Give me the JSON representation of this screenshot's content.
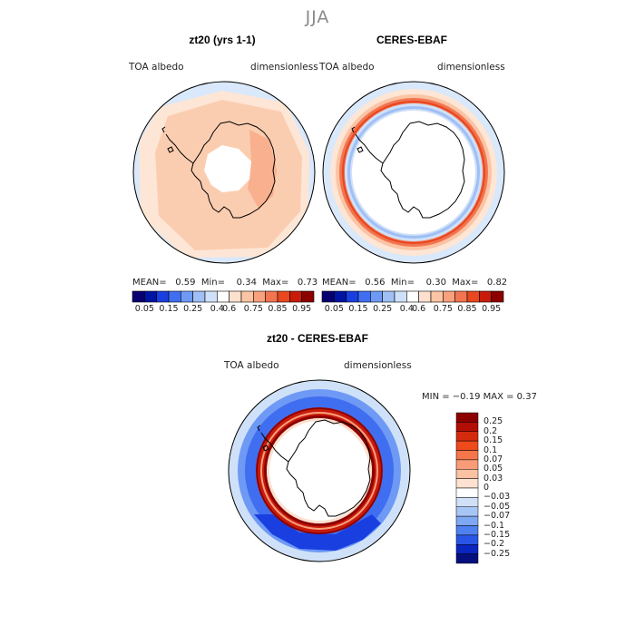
{
  "season": "JJA",
  "colors": {
    "scale": [
      "#08006e",
      "#0014a3",
      "#1a3fe0",
      "#3f6ef0",
      "#6e99f5",
      "#9fbff5",
      "#cfe1f8",
      "#ffffff",
      "#fde0cd",
      "#fbc4a4",
      "#f9a07c",
      "#f27450",
      "#e8471f",
      "#c81b0a",
      "#8d0000"
    ],
    "land_outline": "#000000",
    "frame": "#000000"
  },
  "panels": [
    {
      "title": "zt20 (yrs 1-1)",
      "left_label": "TOA albedo",
      "right_label": "dimensionless",
      "stats": {
        "mean_label": "MEAN=",
        "mean": "0.59",
        "min_label": "Min=",
        "min": "0.34",
        "max_label": "Max=",
        "max": "0.73"
      },
      "colorbar_labels": [
        "0.05",
        "0.15",
        "0.25",
        "0.4",
        "0.6",
        "0.75",
        "0.85",
        "0.95"
      ]
    },
    {
      "title": "CERES-EBAF",
      "left_label": "TOA albedo",
      "right_label": "dimensionless",
      "stats": {
        "mean_label": "MEAN=",
        "mean": "0.56",
        "min_label": "Min=",
        "min": "0.30",
        "max_label": "Max=",
        "max": "0.82"
      },
      "colorbar_labels": [
        "0.05",
        "0.15",
        "0.25",
        "0.4",
        "0.6",
        "0.75",
        "0.85",
        "0.95"
      ]
    }
  ],
  "diff": {
    "title": "zt20 - CERES-EBAF",
    "left_label": "TOA albedo",
    "right_label": "dimensionless",
    "minmax": "MIN =  −0.19  MAX =    0.37",
    "colorbar_labels": [
      "0.25",
      "0.2",
      "0.15",
      "0.1",
      "0.07",
      "0.05",
      "0.03",
      "0",
      "−0.03",
      "−0.05",
      "−0.07",
      "−0.1",
      "−0.15",
      "−0.2",
      "−0.25"
    ],
    "colorbar_colors": [
      "#8d0000",
      "#b30e05",
      "#d42a0e",
      "#ee4a1c",
      "#f5764a",
      "#f89c77",
      "#fbc1a3",
      "#fde2d1",
      "#ffffff",
      "#cfe0f7",
      "#a8c6f5",
      "#7fa8f3",
      "#4f80f0",
      "#2955e6",
      "#0a25c0",
      "#05107e"
    ]
  }
}
